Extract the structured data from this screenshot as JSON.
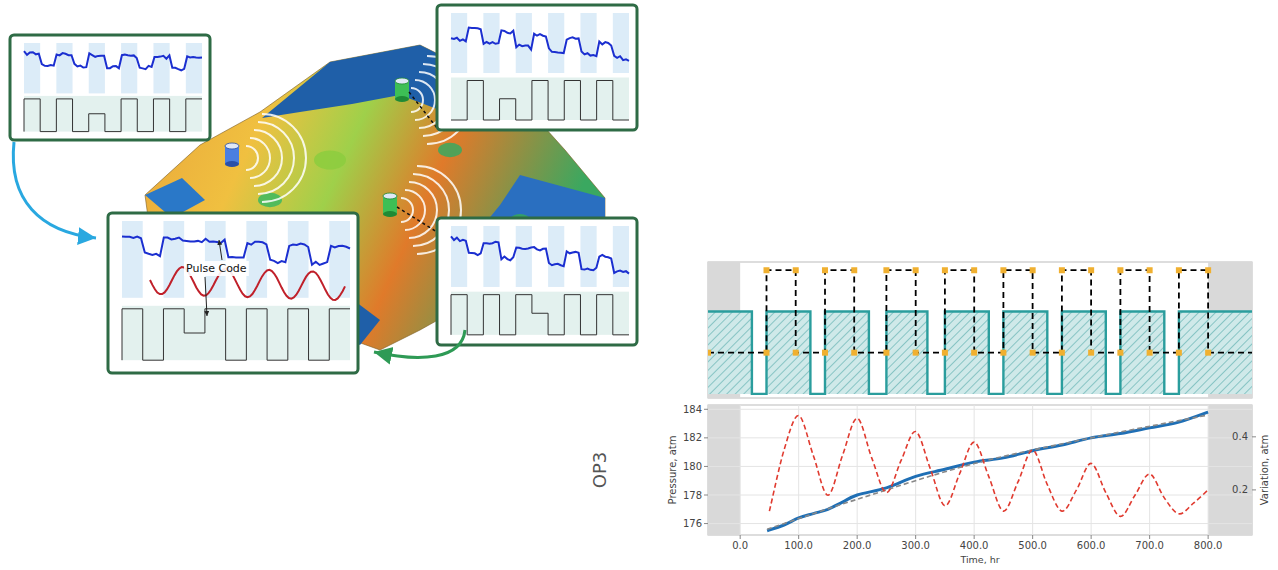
{
  "diagram": {
    "annotation": "Pulse Code"
  },
  "chart_data": [
    {
      "type": "area",
      "xlim": [
        -55,
        875
      ],
      "ylim": [
        -0.05,
        1.6
      ],
      "tick_labels": false,
      "series": [
        {
          "type": "area",
          "color": "#2a9d9d",
          "line_style": "solid",
          "x": [
            -55,
            20,
            45,
            120,
            145,
            220,
            250,
            320,
            350,
            425,
            450,
            525,
            550,
            625,
            650,
            725,
            750
          ],
          "values": [
            1,
            0,
            1,
            0,
            1,
            0,
            1,
            0,
            1,
            0,
            1,
            0,
            1,
            0,
            1,
            0,
            1
          ]
        },
        {
          "type": "line",
          "color": "#000000",
          "line_style": "dashed",
          "marker": "square",
          "x": [
            -55,
            45,
            95,
            145,
            195,
            250,
            300,
            350,
            400,
            450,
            500,
            550,
            600,
            650,
            700,
            750,
            800
          ],
          "values": [
            0.5,
            1.5,
            0.5,
            1.5,
            0.5,
            1.5,
            0.5,
            1.5,
            0.5,
            1.5,
            0.5,
            1.5,
            0.5,
            1.5,
            0.5,
            1.5,
            0.5
          ]
        }
      ]
    },
    {
      "type": "line",
      "title": "OP3",
      "x_label": "Time, hr",
      "y_label": "Pressure, atm",
      "y2_label": "Variation, atm",
      "xlim": [
        -55,
        875
      ],
      "xticks": [
        {
          "value": 0,
          "label": "0.0"
        },
        {
          "value": 100,
          "label": "100.0"
        },
        {
          "value": 200,
          "label": "200.0"
        },
        {
          "value": 300,
          "label": "300.0"
        },
        {
          "value": 400,
          "label": "400.0"
        },
        {
          "value": 500,
          "label": "500.0"
        },
        {
          "value": 600,
          "label": "600.0"
        },
        {
          "value": 700,
          "label": "700.0"
        },
        {
          "value": 800,
          "label": "800.0"
        }
      ],
      "ylim": [
        175.2,
        184.3
      ],
      "yticks": [
        176,
        178,
        180,
        182,
        184
      ],
      "y2lim": [
        0.03,
        0.52
      ],
      "y2ticks": [
        0.2,
        0.4
      ],
      "grid": true,
      "series": [
        {
          "color": "#1f6fb5",
          "line_style": "solid",
          "x": [
            46,
            75,
            100,
            125,
            150,
            175,
            200,
            250,
            300,
            350,
            400,
            450,
            500,
            550,
            600,
            650,
            700,
            750,
            800
          ],
          "values": [
            175.5,
            175.9,
            176.4,
            176.7,
            177.0,
            177.5,
            178.0,
            178.5,
            179.3,
            179.8,
            180.3,
            180.6,
            181.1,
            181.5,
            182.0,
            182.3,
            182.7,
            183.1,
            183.8
          ]
        },
        {
          "color": "#888888",
          "line_style": "dashed",
          "x": [
            46,
            200,
            400,
            600,
            800
          ],
          "values": [
            175.6,
            177.7,
            180.2,
            182.0,
            183.6
          ]
        },
        {
          "color": "#e03a2f",
          "line_style": "dashed",
          "axis": "y2",
          "x": [
            50,
            75,
            100,
            125,
            150,
            175,
            200,
            225,
            250,
            275,
            300,
            325,
            350,
            375,
            400,
            425,
            450,
            475,
            500,
            525,
            550,
            575,
            600,
            625,
            650,
            675,
            700,
            725,
            750,
            775,
            800
          ],
          "values": [
            0.12,
            0.35,
            0.48,
            0.33,
            0.18,
            0.33,
            0.47,
            0.32,
            0.19,
            0.31,
            0.42,
            0.28,
            0.14,
            0.26,
            0.38,
            0.25,
            0.12,
            0.23,
            0.35,
            0.22,
            0.12,
            0.2,
            0.3,
            0.19,
            0.1,
            0.18,
            0.26,
            0.17,
            0.11,
            0.15,
            0.2
          ]
        }
      ]
    }
  ]
}
